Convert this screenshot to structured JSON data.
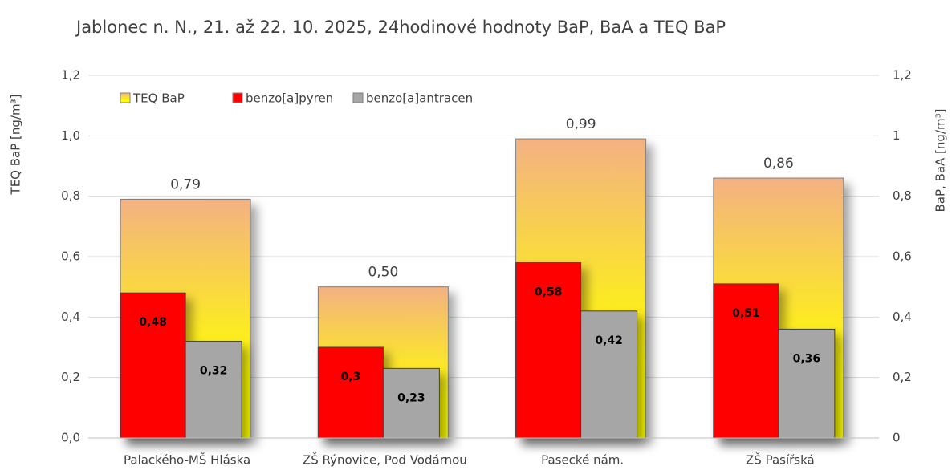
{
  "chart_data": {
    "type": "bar",
    "title": "Jablonec n. N., 21. až 22. 10. 2025, 24hodinové hodnoty BaP, BaA a TEQ BaP",
    "ylabel": "TEQ BaP [ng/m³]",
    "y2label": "BaP, BaA [ng/m³]",
    "categories": [
      "Palackého-MŠ Hláska",
      "ZŠ Rýnovice, Pod Vodárnou",
      "Pasecké nám.",
      "ZŠ Pasířská"
    ],
    "series": [
      {
        "name": "TEQ BaP",
        "color": "#ffff00",
        "values": [
          0.79,
          0.5,
          0.99,
          0.86
        ],
        "value_labels": [
          "0,79",
          "0,50",
          "0,99",
          "0,86"
        ]
      },
      {
        "name": "benzo[a]pyren",
        "color": "#ff0000",
        "axis": "y2",
        "values": [
          0.48,
          0.3,
          0.58,
          0.51
        ],
        "value_labels": [
          "0,48",
          "0,3",
          "0,58",
          "0,51"
        ]
      },
      {
        "name": "benzo[a]antracen",
        "color": "#a6a6a6",
        "axis": "y2",
        "values": [
          0.32,
          0.23,
          0.42,
          0.36
        ],
        "value_labels": [
          "0,32",
          "0,23",
          "0,42",
          "0,36"
        ]
      }
    ],
    "ylim": [
      0,
      1.2
    ],
    "yticks": [
      {
        "value": 0,
        "label": "0,0"
      },
      {
        "value": 0.2,
        "label": "0,2"
      },
      {
        "value": 0.4,
        "label": "0,4"
      },
      {
        "value": 0.6,
        "label": "0,6"
      },
      {
        "value": 0.8,
        "label": "0,8"
      },
      {
        "value": 1.0,
        "label": "1,0"
      },
      {
        "value": 1.2,
        "label": "1,2"
      }
    ],
    "y2lim": [
      0,
      1.2
    ],
    "y2ticks": [
      0,
      {
        "value": 0.2,
        "label": "0,2"
      },
      {
        "value": 0.4,
        "label": "0,4"
      },
      {
        "value": 0.6,
        "label": "0,6"
      },
      {
        "value": 0.8,
        "label": "0,8"
      },
      1,
      {
        "value": 1.2,
        "label": "1,2"
      }
    ],
    "grid": true,
    "legend": "top-left"
  }
}
